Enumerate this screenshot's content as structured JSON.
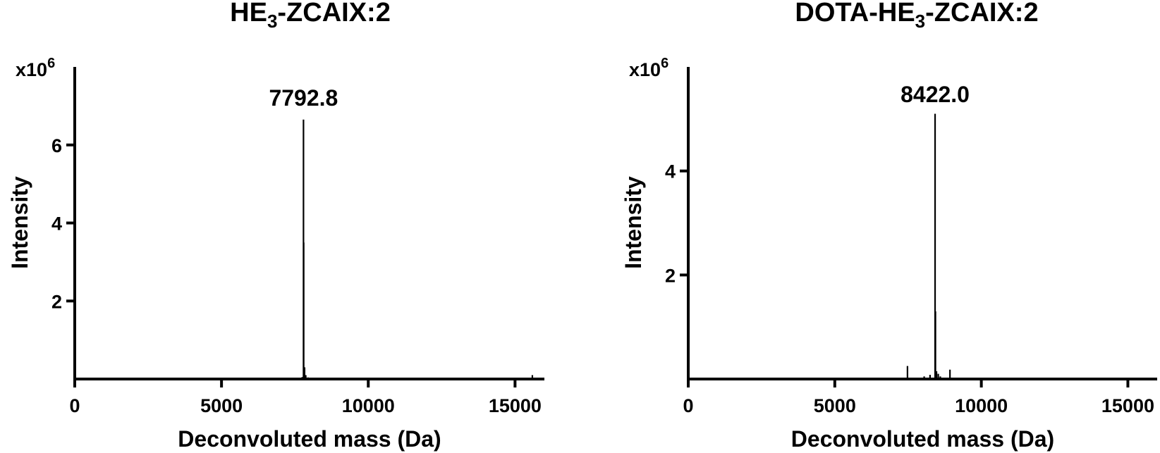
{
  "chart_data": [
    {
      "type": "bar",
      "title": "HE3-ZCAIX:2",
      "title_parts": {
        "pre": "HE",
        "sub": "3",
        "post": "-ZCAIX:2"
      },
      "xlabel": "Deconvoluted mass (Da)",
      "ylabel": "Intensity",
      "y_multiplier": {
        "base": "x10",
        "exp": "6"
      },
      "xlim": [
        0,
        16000
      ],
      "ylim": [
        0,
        8
      ],
      "xticks": [
        0,
        5000,
        10000,
        15000
      ],
      "xtick_labels": [
        "0",
        "5000",
        "10000",
        "15000"
      ],
      "yticks": [
        2,
        4,
        6
      ],
      "ytick_labels": [
        "2",
        "4",
        "6"
      ],
      "grid": false,
      "peak_label": "7792.8",
      "peaks": [
        {
          "x": 7600,
          "y": 0.03
        },
        {
          "x": 7750,
          "y": 0.05
        },
        {
          "x": 7792.8,
          "y": 6.65
        },
        {
          "x": 7800,
          "y": 3.5
        },
        {
          "x": 7830,
          "y": 0.3
        },
        {
          "x": 7870,
          "y": 0.1
        },
        {
          "x": 7950,
          "y": 0.04
        },
        {
          "x": 15590,
          "y": 0.1
        }
      ]
    },
    {
      "type": "bar",
      "title": "DOTA-HE3-ZCAIX:2",
      "title_parts": {
        "pre": "DOTA-HE",
        "sub": "3",
        "post": "-ZCAIX:2"
      },
      "xlabel": "Deconvoluted mass (Da)",
      "ylabel": "Intensity",
      "y_multiplier": {
        "base": "x10",
        "exp": "6"
      },
      "xlim": [
        0,
        16000
      ],
      "ylim": [
        0,
        6
      ],
      "xticks": [
        0,
        5000,
        10000,
        15000
      ],
      "xtick_labels": [
        "0",
        "5000",
        "10000",
        "15000"
      ],
      "yticks": [
        2,
        4
      ],
      "ytick_labels": [
        "2",
        "4"
      ],
      "grid": false,
      "peak_label": "8422.0",
      "peaks": [
        {
          "x": 7480,
          "y": 0.25
        },
        {
          "x": 8050,
          "y": 0.05
        },
        {
          "x": 8250,
          "y": 0.08
        },
        {
          "x": 8422.0,
          "y": 5.1
        },
        {
          "x": 8435,
          "y": 1.3
        },
        {
          "x": 8470,
          "y": 0.15
        },
        {
          "x": 8530,
          "y": 0.1
        },
        {
          "x": 8600,
          "y": 0.05
        },
        {
          "x": 8930,
          "y": 0.18
        }
      ]
    }
  ]
}
